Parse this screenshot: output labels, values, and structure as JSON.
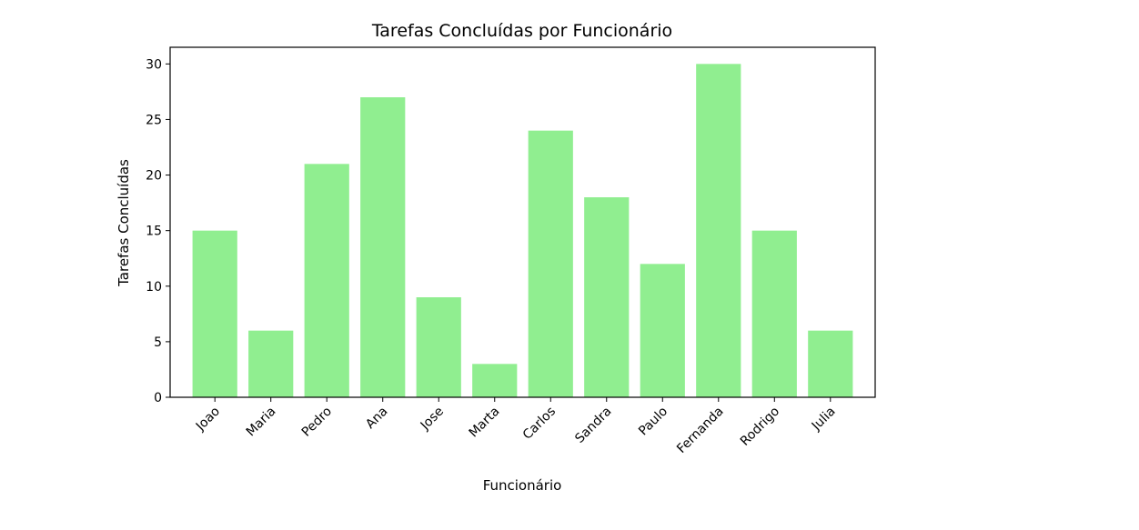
{
  "chart_data": {
    "type": "bar",
    "title": "Tarefas Concluídas por Funcionário",
    "xlabel": "Funcionário",
    "ylabel": "Tarefas Concluídas",
    "categories": [
      "Joao",
      "Maria",
      "Pedro",
      "Ana",
      "Jose",
      "Marta",
      "Carlos",
      "Sandra",
      "Paulo",
      "Fernanda",
      "Rodrigo",
      "Julia"
    ],
    "values": [
      15,
      6,
      21,
      27,
      9,
      3,
      24,
      18,
      12,
      30,
      15,
      6
    ],
    "ylim": [
      0,
      31.5
    ],
    "yticks": [
      0,
      5,
      10,
      15,
      20,
      25,
      30
    ],
    "bar_color": "#90ee90",
    "grid": false,
    "legend": "none"
  }
}
